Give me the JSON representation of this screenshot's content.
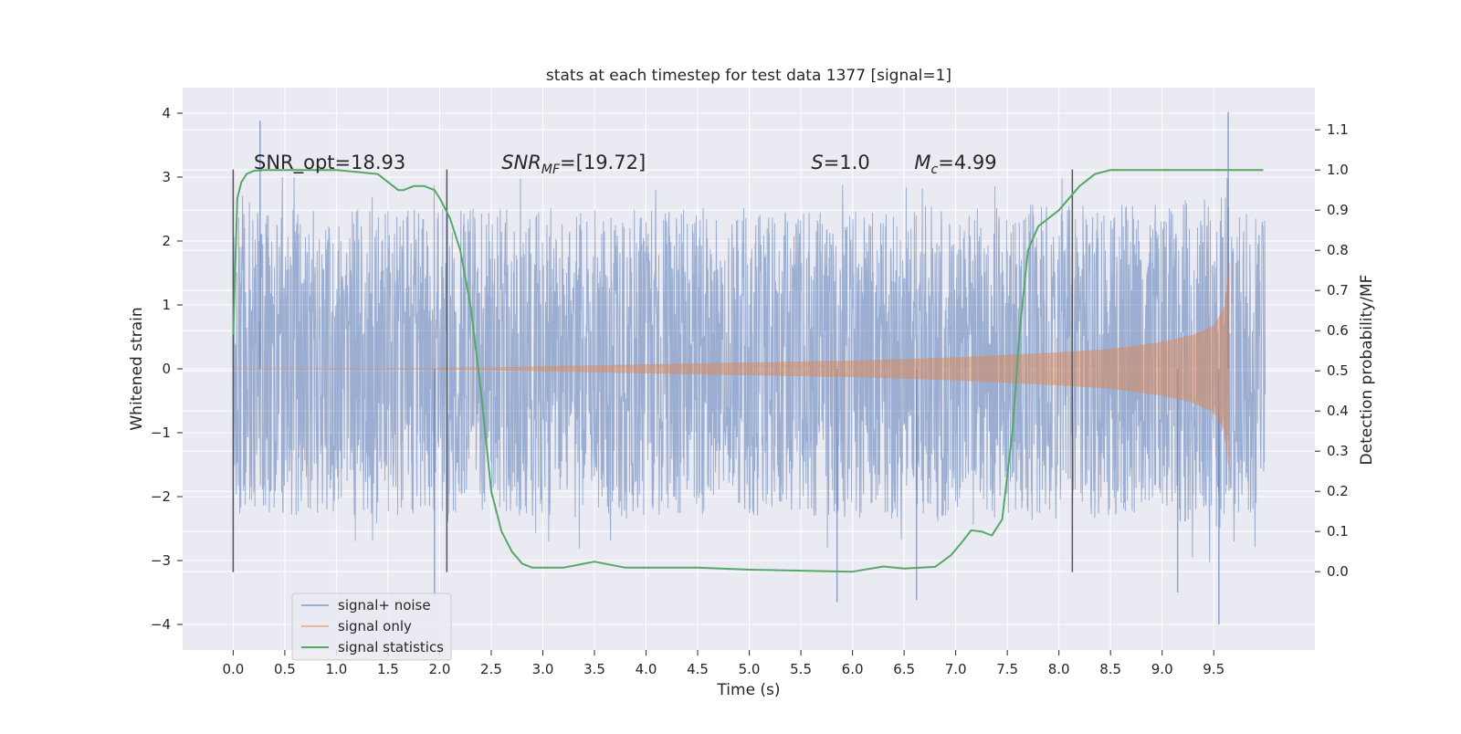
{
  "chart_data": {
    "type": "line",
    "title": "stats at each timestep for test data 1377 [signal=1]",
    "xlabel": "Time (s)",
    "ylabel": "Whitened strain",
    "ylabel_right": "Detection probability/MF",
    "xlim": [
      -0.49,
      10.48
    ],
    "ylim": [
      -4.4,
      4.4
    ],
    "ylim_right": [
      -0.195,
      1.205
    ],
    "x_ticks": [
      0.0,
      0.5,
      1.0,
      1.5,
      2.0,
      2.5,
      3.0,
      3.5,
      4.0,
      4.5,
      5.0,
      5.5,
      6.0,
      6.5,
      7.0,
      7.5,
      8.0,
      8.5,
      9.0,
      9.5
    ],
    "x_tick_labels": [
      "0.0",
      "0.5",
      "1.0",
      "1.5",
      "2.0",
      "2.5",
      "3.0",
      "3.5",
      "4.0",
      "4.5",
      "5.0",
      "5.5",
      "6.0",
      "6.5",
      "7.0",
      "7.5",
      "8.0",
      "8.5",
      "9.0",
      "9.5"
    ],
    "y_ticks": [
      -4,
      -3,
      -2,
      -1,
      0,
      1,
      2,
      3,
      4
    ],
    "y_tick_labels": [
      "−4",
      "−3",
      "−2",
      "−1",
      "0",
      "1",
      "2",
      "3",
      "4"
    ],
    "y2_ticks": [
      0.0,
      0.1,
      0.2,
      0.3,
      0.4,
      0.5,
      0.6,
      0.7,
      0.8,
      0.9,
      1.0,
      1.1
    ],
    "y2_tick_labels": [
      "0.0",
      "0.1",
      "0.2",
      "0.3",
      "0.4",
      "0.5",
      "0.6",
      "0.7",
      "0.8",
      "0.9",
      "1.0",
      "1.1"
    ],
    "grid": true,
    "legend_position": "lower-left",
    "series": [
      {
        "name": "signal+ noise",
        "color": "#4c72b0",
        "axis": "left",
        "description": "whitened noise with signal, sampled 0 to 10 s",
        "x_range": [
          0.0,
          10.0
        ],
        "typical_amplitude": [
          -2.3,
          2.5
        ],
        "peaks": [
          {
            "x": 0.26,
            "y": 3.88
          },
          {
            "x": 1.95,
            "y": -3.55
          },
          {
            "x": 5.85,
            "y": -3.65
          },
          {
            "x": 6.62,
            "y": -3.62
          },
          {
            "x": 9.15,
            "y": -3.5
          },
          {
            "x": 9.55,
            "y": -4.0
          },
          {
            "x": 9.64,
            "y": 4.02
          }
        ]
      },
      {
        "name": "signal only",
        "color": "#dd8452",
        "axis": "left",
        "description": "chirp waveform, amplitude envelope",
        "envelope": {
          "x": [
            2.5,
            3.0,
            4.0,
            5.0,
            6.0,
            7.0,
            8.0,
            8.5,
            9.0,
            9.3,
            9.5,
            9.6,
            9.65
          ],
          "amplitude": [
            0.02,
            0.04,
            0.07,
            0.1,
            0.13,
            0.18,
            0.26,
            0.31,
            0.42,
            0.53,
            0.68,
            0.95,
            1.65
          ]
        },
        "end_x": 9.65
      },
      {
        "name": "signal statistics",
        "color": "#55a868",
        "axis": "right",
        "x": [
          0.0,
          0.04,
          0.08,
          0.13,
          0.2,
          0.3,
          0.5,
          1.0,
          1.4,
          1.5,
          1.6,
          1.65,
          1.75,
          1.85,
          1.95,
          2.0,
          2.1,
          2.2,
          2.3,
          2.4,
          2.5,
          2.6,
          2.7,
          2.8,
          2.9,
          3.0,
          3.2,
          3.5,
          3.8,
          4.0,
          4.5,
          5.0,
          6.0,
          6.3,
          6.5,
          6.8,
          6.95,
          7.05,
          7.15,
          7.25,
          7.35,
          7.45,
          7.55,
          7.62,
          7.7,
          7.8,
          8.0,
          8.2,
          8.35,
          8.5,
          9.0,
          9.5,
          9.98
        ],
        "y": [
          0.59,
          0.93,
          0.97,
          0.99,
          0.998,
          1.0,
          1.0,
          1.0,
          0.99,
          0.97,
          0.95,
          0.95,
          0.96,
          0.96,
          0.95,
          0.93,
          0.88,
          0.8,
          0.66,
          0.45,
          0.2,
          0.1,
          0.05,
          0.02,
          0.01,
          0.01,
          0.01,
          0.025,
          0.01,
          0.01,
          0.01,
          0.005,
          0.0,
          0.013,
          0.008,
          0.012,
          0.04,
          0.07,
          0.103,
          0.1,
          0.09,
          0.13,
          0.35,
          0.6,
          0.8,
          0.86,
          0.9,
          0.96,
          0.99,
          1.0,
          1.0,
          1.0,
          1.0
        ]
      }
    ],
    "vertical_lines": [
      0.0,
      2.07,
      8.13
    ],
    "annotations": [
      {
        "text": "SNR_opt=18.93",
        "x": 0.2,
        "y": 1.0
      },
      {
        "text": "SNR",
        "sub": "MF",
        "suffix": "=[19.72]",
        "x": 2.6,
        "y": 1.0
      },
      {
        "text": "S",
        "suffix": "=1.0",
        "x": 5.6,
        "y": 1.0
      },
      {
        "text": "M",
        "sub": "c",
        "suffix": "=4.99",
        "x": 6.6,
        "y": 1.0
      }
    ]
  }
}
